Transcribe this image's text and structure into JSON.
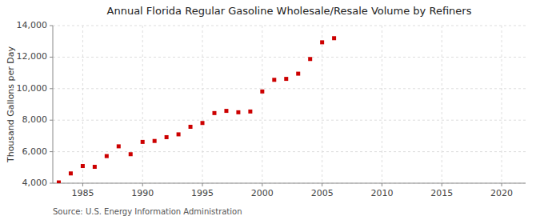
{
  "chart_data": {
    "type": "scatter",
    "title": "Annual Florida Regular Gasoline Wholesale/Resale Volume by Refiners",
    "y_label": "Thousand Gallons per Day",
    "source": "Source: U.S. Energy Information Administration",
    "x": [
      1983,
      1984,
      1985,
      1986,
      1987,
      1988,
      1989,
      1990,
      1991,
      1992,
      1993,
      1994,
      1995,
      1996,
      1997,
      1998,
      1999,
      2000,
      2001,
      2002,
      2003,
      2004,
      2005,
      2006
    ],
    "values": [
      4050,
      4620,
      5090,
      5040,
      5720,
      6340,
      5840,
      6620,
      6680,
      6920,
      7100,
      7580,
      7820,
      8450,
      8590,
      8500,
      8550,
      9820,
      10560,
      10620,
      10950,
      11880,
      12940,
      13200
    ],
    "color": "#cc0000",
    "marker": "square",
    "xlim": [
      1982.5,
      2022
    ],
    "ylim": [
      4000,
      14000
    ],
    "xticks": [
      1985,
      1990,
      1995,
      2000,
      2005,
      2010,
      2015,
      2020
    ],
    "yticks": [
      {
        "value": 4000,
        "label": "4,000"
      },
      {
        "value": 6000,
        "label": "6,000"
      },
      {
        "value": 8000,
        "label": "8,000"
      },
      {
        "value": 10000,
        "label": "10,000"
      },
      {
        "value": 12000,
        "label": "12,000"
      },
      {
        "value": 14000,
        "label": "14,000"
      }
    ],
    "grid": true
  }
}
